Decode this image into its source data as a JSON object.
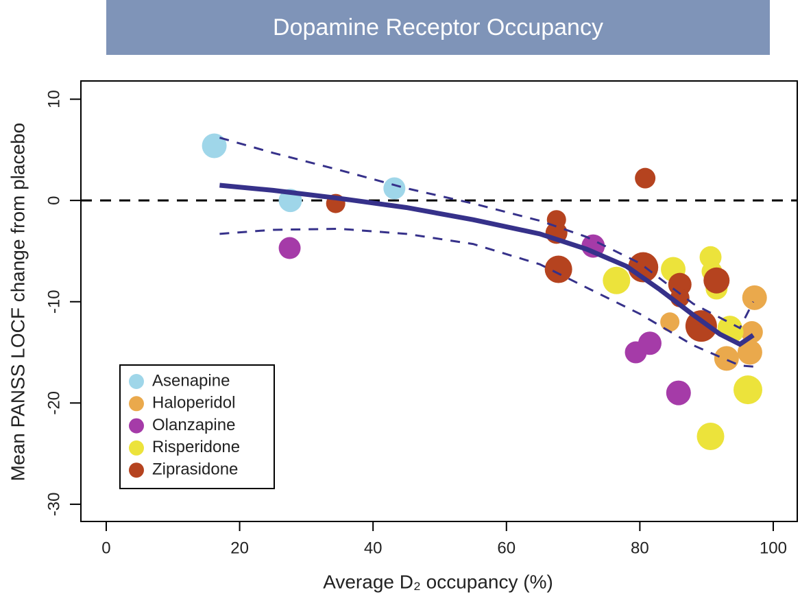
{
  "chart_data": {
    "type": "scatter",
    "title": "Dopamine Receptor Occupancy",
    "xlabel": "Average D₂ occupancy (%)",
    "ylabel": "Mean PANSS LOCF change from placebo",
    "xlim": [
      -3.8,
      103.6
    ],
    "ylim": [
      -31.7,
      11.8
    ],
    "xticks": [
      0,
      20,
      40,
      60,
      80,
      100
    ],
    "yticks": [
      -30,
      -20,
      -10,
      0,
      10
    ],
    "hline": 0,
    "series": [
      {
        "name": "Asenapine",
        "color": "#9fd6e9",
        "x": [
          16.2,
          27.6,
          43.2
        ],
        "values": [
          5.4,
          0,
          1.2
        ],
        "sizes": [
          18,
          17,
          16
        ]
      },
      {
        "name": "Haloperidol",
        "color": "#eaa94c",
        "x": [
          97.2,
          96.8,
          93,
          96.5,
          84.5
        ],
        "values": [
          -9.6,
          -13,
          -15.6,
          -15,
          -12
        ],
        "sizes": [
          18,
          16,
          18,
          18,
          14
        ]
      },
      {
        "name": "Olanzapine",
        "color": "#a53ba8",
        "x": [
          27.5,
          73,
          79.4,
          81.5,
          85.8
        ],
        "values": [
          -4.7,
          -4.5,
          -15,
          -14.1,
          -19
        ],
        "sizes": [
          16,
          17,
          16,
          17,
          18
        ]
      },
      {
        "name": "Risperidone",
        "color": "#ece33b",
        "x": [
          76.5,
          85,
          90.6,
          90.8,
          91.5,
          93.5,
          96.2,
          90.6,
          94
        ],
        "values": [
          -7.9,
          -6.8,
          -5.6,
          -7,
          -8.7,
          -12.6,
          -18.7,
          -23.3,
          -13
        ],
        "sizes": [
          20,
          18,
          16,
          15,
          16,
          18,
          21,
          20,
          15
        ]
      },
      {
        "name": "Ziprasidone",
        "color": "#b5431f",
        "x": [
          34.4,
          80.8,
          67.5,
          67.5,
          67.8,
          80.5,
          86,
          86,
          91.5,
          89.2
        ],
        "values": [
          -0.3,
          2.2,
          -1.9,
          -3.2,
          -6.8,
          -6.6,
          -8.3,
          -9.6,
          -7.9,
          -12.4
        ],
        "sizes": [
          14,
          15,
          14,
          16,
          20,
          22,
          17,
          14,
          19,
          23
        ]
      }
    ],
    "fit": {
      "color": "#36318a",
      "x": [
        17,
        25,
        35,
        45,
        55,
        65,
        72,
        78,
        83,
        88,
        92,
        95,
        97
      ],
      "y": [
        1.5,
        1.0,
        0.2,
        -0.7,
        -1.9,
        -3.3,
        -4.8,
        -6.5,
        -8.8,
        -11.3,
        -13.2,
        -14.2,
        -13.3
      ]
    },
    "band_upper": {
      "x": [
        17,
        25,
        35,
        45,
        55,
        65,
        72,
        80,
        88,
        95,
        97
      ],
      "y": [
        6.2,
        4.7,
        3.0,
        1.2,
        -0.3,
        -2.0,
        -3.6,
        -6.2,
        -10.2,
        -12.6,
        -10
      ]
    },
    "band_lower": {
      "x": [
        17,
        25,
        35,
        45,
        55,
        65,
        72,
        80,
        88,
        95,
        97
      ],
      "y": [
        -3.3,
        -2.9,
        -2.8,
        -3.3,
        -4.3,
        -6.3,
        -8.6,
        -11.2,
        -14.3,
        -16.3,
        -16.4
      ]
    }
  }
}
